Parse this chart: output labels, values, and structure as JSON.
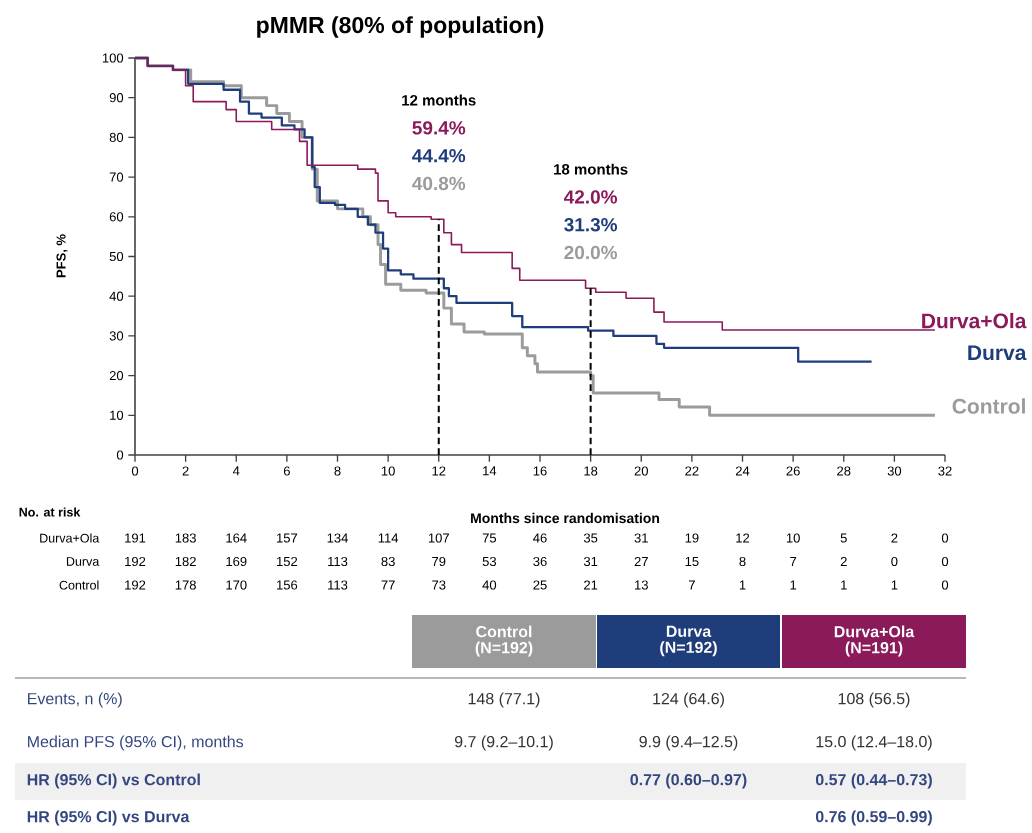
{
  "chart_data": {
    "type": "step",
    "title": "pMMR (80% of population)",
    "xlabel": "Months since randomisation",
    "ylabel": "PFS, %",
    "xlim": [
      0,
      32
    ],
    "ylim": [
      0,
      100
    ],
    "xticks": [
      0,
      2,
      4,
      6,
      8,
      10,
      12,
      14,
      16,
      18,
      20,
      22,
      24,
      26,
      28,
      30,
      32
    ],
    "yticks": [
      0,
      10,
      20,
      30,
      40,
      50,
      60,
      70,
      80,
      90,
      100
    ],
    "series": [
      {
        "name": "Durva+Ola",
        "color": "#8b1a5b",
        "x": [
          0,
          0.5,
          1.5,
          2.0,
          2.3,
          3.6,
          4.0,
          5.4,
          6.5,
          6.8,
          8.8,
          9.5,
          9.6,
          10.0,
          10.3,
          11.7,
          12.2,
          12.5,
          12.9,
          14.9,
          15.2,
          17.8,
          18.2,
          19.4,
          20.5,
          20.9,
          23.2,
          31.6
        ],
        "values": [
          100,
          98,
          97,
          93,
          89,
          87,
          84,
          82,
          79,
          73,
          72,
          71,
          64,
          61,
          60,
          59.4,
          56,
          53,
          51,
          47,
          44,
          42,
          41,
          39.5,
          36,
          33.5,
          31.5,
          31.5
        ]
      },
      {
        "name": "Durva",
        "color": "#1f3d7a",
        "x": [
          0,
          0.5,
          1.5,
          2.1,
          3.5,
          4.15,
          4.5,
          5.0,
          5.8,
          6.3,
          6.7,
          7.0,
          7.1,
          7.3,
          7.9,
          8.3,
          8.8,
          9.2,
          9.5,
          9.8,
          10.0,
          10.5,
          11.0,
          12.2,
          12.4,
          12.7,
          14.9,
          15.3,
          17.9,
          18.9,
          20.6,
          20.9,
          26.2,
          29.1
        ],
        "values": [
          100,
          98,
          97,
          93.5,
          92,
          89,
          86,
          85,
          83,
          82,
          80,
          72.5,
          67.5,
          63.5,
          63,
          62,
          60,
          58,
          56,
          52,
          46.5,
          45.5,
          44.4,
          42,
          40,
          38.3,
          35,
          32.2,
          31.3,
          30,
          28,
          27,
          23.5,
          23.5
        ]
      },
      {
        "name": "Control",
        "color": "#9b9b9b",
        "x": [
          0,
          0.5,
          1.5,
          2.2,
          3.5,
          4.2,
          5.2,
          5.6,
          6.1,
          6.6,
          7.0,
          7.2,
          8.0,
          9.0,
          9.3,
          9.6,
          9.7,
          9.9,
          10.5,
          11.5,
          12.2,
          12.5,
          13.0,
          13.8,
          15.3,
          15.5,
          15.8,
          15.9,
          18.0,
          18.1,
          20.7,
          21.5,
          22.7,
          31.6
        ],
        "values": [
          100,
          98,
          97,
          94,
          93,
          90,
          88,
          86,
          84,
          80,
          72,
          64,
          62,
          60,
          58,
          53,
          48,
          43,
          41.5,
          40.8,
          37,
          33,
          31,
          30.5,
          27,
          25,
          23,
          20.9,
          20.0,
          15.6,
          14,
          12.1,
          10,
          10
        ]
      }
    ],
    "ref_lines": [
      {
        "axis": "x",
        "value": 12,
        "color": "#000000",
        "line_style": "dashed"
      },
      {
        "axis": "x",
        "value": 18,
        "color": "#000000",
        "line_style": "dashed"
      }
    ],
    "annotations": [
      "12 months",
      "59.4%",
      "44.4%",
      "40.8%",
      "18 months",
      "42.0%",
      "31.3%",
      "20.0%",
      "No. at risk",
      "Durva+Ola",
      "Durva",
      "Control",
      "191",
      "183",
      "164",
      "157",
      "134",
      "114",
      "107",
      "75",
      "46",
      "35",
      "31",
      "19",
      "12",
      "10",
      "5",
      "2",
      "0",
      "192",
      "182",
      "169",
      "152",
      "113",
      "83",
      "79",
      "53",
      "36",
      "31",
      "27",
      "15",
      "8",
      "7",
      "2",
      "0",
      "0",
      "192",
      "178",
      "170",
      "156",
      "113",
      "77",
      "73",
      "40",
      "25",
      "21",
      "13",
      "7",
      "1",
      "1",
      "1",
      "1",
      "0",
      "Control",
      "(N=192)",
      "Durva",
      "(N=192)",
      "Durva+Ola",
      "(N=191)",
      "Events, n (%)",
      "Median PFS (95% CI), months",
      "HR (95% CI) vs Control",
      "HR (95% CI) vs Durva",
      "148 (77.1)",
      "124 (64.6)",
      "108 (56.5)",
      "9.7 (9.2–10.1)",
      "9.9 (9.4–12.5)",
      "15.0 (12.4–18.0)",
      "0.77 (0.60–0.97)",
      "0.57 (0.44–0.73)",
      "0.76 (0.59–0.99)"
    ]
  }
}
